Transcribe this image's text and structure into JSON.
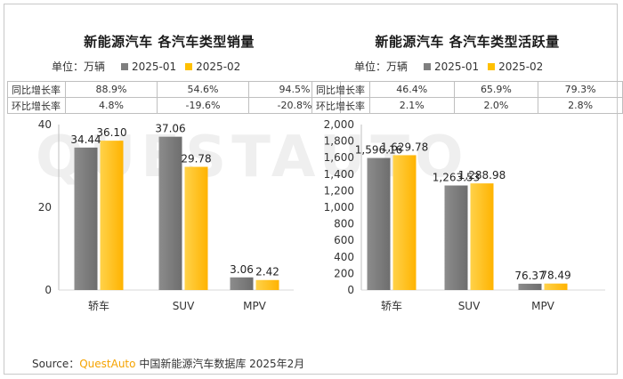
{
  "watermark": "QUESTAUTO",
  "legend": {
    "unit_label": "单位：万辆",
    "series": [
      {
        "name": "2025-01",
        "color": "#7f7f7f"
      },
      {
        "name": "2025-02",
        "color": "#ffc000"
      }
    ]
  },
  "stats_row_labels": [
    "同比增长率",
    "环比增长率"
  ],
  "panels": [
    {
      "title": "新能源汽车 各汽车类型销量",
      "yoy": [
        "88.9%",
        "54.6%",
        "94.5%"
      ],
      "mom": [
        "4.8%",
        "-19.6%",
        "-20.8%"
      ]
    },
    {
      "title": "新能源汽车 各汽车类型活跃量",
      "yoy": [
        "46.4%",
        "65.9%",
        "79.3%"
      ],
      "mom": [
        "2.1%",
        "2.0%",
        "2.8%"
      ]
    }
  ],
  "chart_data": [
    {
      "type": "bar",
      "title": "新能源汽车 各汽车类型销量",
      "categories": [
        "轿车",
        "SUV",
        "MPV"
      ],
      "series": [
        {
          "name": "2025-01",
          "values": [
            34.44,
            37.06,
            3.06
          ],
          "labels": [
            "34.44",
            "37.06",
            "3.06"
          ]
        },
        {
          "name": "2025-02",
          "values": [
            36.1,
            29.78,
            2.42
          ],
          "labels": [
            "36.10",
            "29.78",
            "2.42"
          ]
        }
      ],
      "ylim": [
        0,
        40
      ],
      "yticks": [
        0,
        20,
        40
      ],
      "ytick_labels": [
        "0",
        "20",
        "40"
      ],
      "grid": false
    },
    {
      "type": "bar",
      "title": "新能源汽车 各汽车类型活跃量",
      "categories": [
        "轿车",
        "SUV",
        "MPV"
      ],
      "series": [
        {
          "name": "2025-01",
          "values": [
            1596.16,
            1263.53,
            76.37
          ],
          "labels": [
            "1,596.16",
            "1,263.53",
            "76.37"
          ]
        },
        {
          "name": "2025-02",
          "values": [
            1629.78,
            1288.98,
            78.49
          ],
          "labels": [
            "1,629.78",
            "1,288.98",
            "78.49"
          ]
        }
      ],
      "ylim": [
        0,
        2000
      ],
      "yticks": [
        0,
        200,
        400,
        600,
        800,
        1000,
        1200,
        1400,
        1600,
        1800,
        2000
      ],
      "ytick_labels": [
        "0",
        "200",
        "400",
        "600",
        "800",
        "1,000",
        "1,200",
        "1,400",
        "1,600",
        "1,800",
        "2,000"
      ],
      "grid": false
    }
  ],
  "source": {
    "prefix": "Source：",
    "brand": "QuestAuto",
    "text": "中国新能源汽车数据库 2025年2月"
  }
}
